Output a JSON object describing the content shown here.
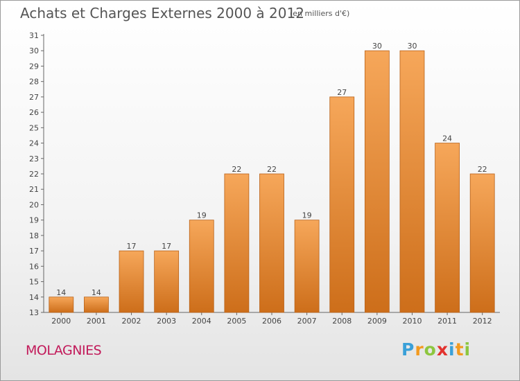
{
  "header": {
    "title": "Achats et Charges Externes 2000 à 2012",
    "unit": "(en milliers d'€)"
  },
  "footer": {
    "commune": "MOLAGNIES",
    "logo_letters": [
      "P",
      "r",
      "o",
      "x",
      "i",
      "t",
      "i"
    ],
    "logo_colors": [
      "#3aa0d8",
      "#f39a1f",
      "#8dc63f",
      "#e2322e",
      "#3aa0d8",
      "#f39a1f",
      "#8dc63f"
    ]
  },
  "chart_data": {
    "type": "bar",
    "title": "Achats et Charges Externes 2000 à 2012",
    "subtitle": "(en milliers d'€)",
    "xlabel": "",
    "ylabel": "",
    "categories": [
      "2000",
      "2001",
      "2002",
      "2003",
      "2004",
      "2005",
      "2006",
      "2007",
      "2008",
      "2009",
      "2010",
      "2011",
      "2012"
    ],
    "values": [
      14,
      14,
      17,
      17,
      19,
      22,
      22,
      19,
      27,
      30,
      30,
      24,
      22
    ],
    "ylim": [
      13,
      31
    ],
    "yticks": [
      13,
      14,
      15,
      16,
      17,
      18,
      19,
      20,
      21,
      22,
      23,
      24,
      25,
      26,
      27,
      28,
      29,
      30,
      31
    ],
    "grid": false,
    "legend": "none",
    "bar_color_top": "#f6a75a",
    "bar_color_bottom": "#cd6e1a",
    "bar_edge_color": "#b8621a"
  }
}
